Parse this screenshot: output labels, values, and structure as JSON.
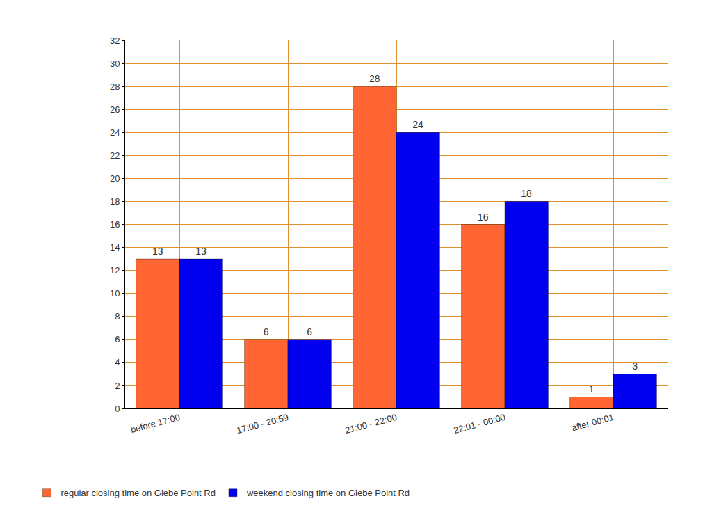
{
  "chart_data": {
    "type": "bar",
    "categories": [
      "before 17:00",
      "17:00 - 20:59",
      "21:00 - 22:00",
      "22:01 - 00:00",
      "after 00:01"
    ],
    "series": [
      {
        "name": "regular closing time on Glebe Point Rd",
        "color": "#ff6633",
        "values": [
          13,
          6,
          28,
          16,
          1
        ]
      },
      {
        "name": "weekend closing time on Glebe Point Rd",
        "color": "#0000ee",
        "values": [
          13,
          6,
          24,
          18,
          3
        ]
      }
    ],
    "ylim": [
      0,
      32
    ],
    "yticks": [
      0,
      2,
      4,
      6,
      8,
      10,
      12,
      14,
      16,
      18,
      20,
      22,
      24,
      26,
      28,
      30,
      32
    ],
    "grid": true,
    "legend": "bottom",
    "data_labels": true
  }
}
